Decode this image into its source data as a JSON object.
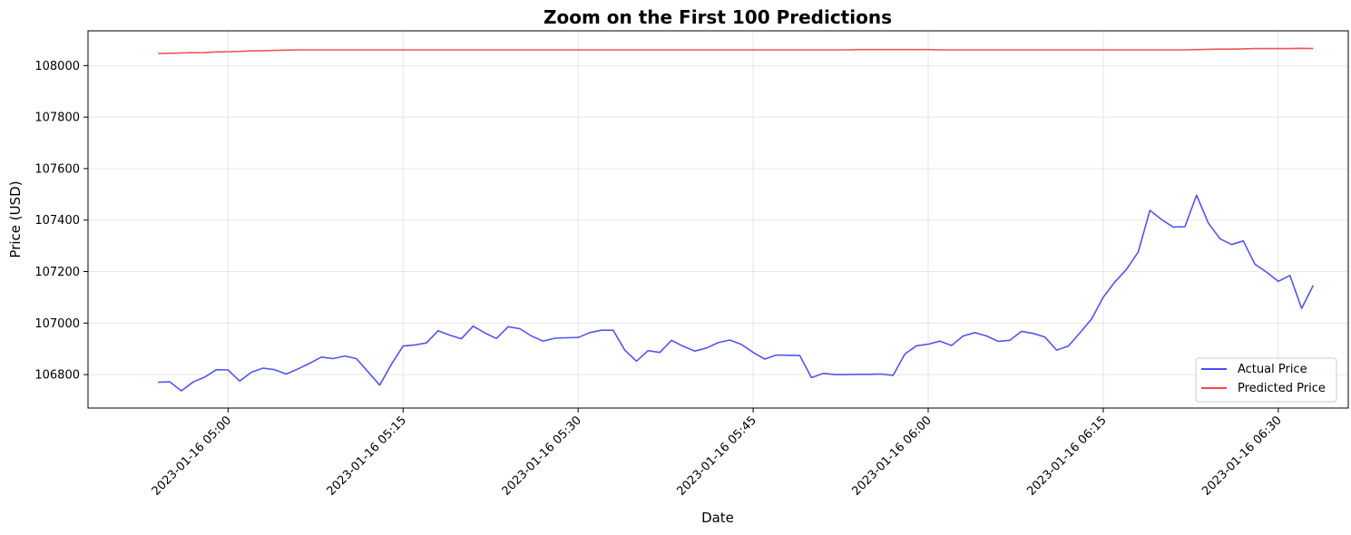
{
  "chart_data": {
    "type": "line",
    "title": "Zoom on the First 100 Predictions",
    "xlabel": "Date",
    "ylabel": "Price (USD)",
    "x_start": "2023-01-16 04:54",
    "x_step_minutes": 1,
    "xlim": [
      "2023-01-16 04:48",
      "2023-01-16 06:36"
    ],
    "ylim": [
      106670,
      108135
    ],
    "x_ticks": [
      "2023-01-16 05:00",
      "2023-01-16 05:15",
      "2023-01-16 05:30",
      "2023-01-16 05:45",
      "2023-01-16 06:00",
      "2023-01-16 06:15",
      "2023-01-16 06:30"
    ],
    "y_ticks": [
      106800,
      107000,
      107200,
      107400,
      107600,
      107800,
      108000
    ],
    "grid": true,
    "legend_position": "lower-right",
    "series": [
      {
        "name": "Actual Price",
        "color": "#4b4bf0",
        "values": [
          106770,
          106772,
          106737,
          106771,
          106790,
          106819,
          106818,
          106775,
          106809,
          106825,
          106819,
          106802,
          106822,
          106844,
          106868,
          106862,
          106872,
          106862,
          106810,
          106759,
          106840,
          106911,
          106915,
          106923,
          106970,
          106953,
          106939,
          106988,
          106962,
          106940,
          106986,
          106978,
          106950,
          106930,
          106941,
          106943,
          106944,
          106963,
          106972,
          106972,
          106895,
          106852,
          106893,
          106886,
          106933,
          106910,
          106891,
          106903,
          106924,
          106934,
          106917,
          106886,
          106860,
          106876,
          106875,
          106874,
          106788,
          106805,
          106800,
          106800,
          106801,
          106801,
          106802,
          106797,
          106880,
          106912,
          106918,
          106930,
          106913,
          106950,
          106963,
          106950,
          106929,
          106933,
          106968,
          106960,
          106946,
          106895,
          106910,
          106962,
          107016,
          107100,
          107160,
          107209,
          107276,
          107438,
          107402,
          107373,
          107374,
          107497,
          107389,
          107328,
          107305,
          107319,
          107229,
          107198,
          107162,
          107185,
          107057,
          107147
        ]
      },
      {
        "name": "Predicted Price",
        "color": "#f04b4b",
        "values": [
          108047,
          108048,
          108049,
          108050,
          108051,
          108053,
          108054,
          108055,
          108057,
          108058,
          108059,
          108060,
          108061,
          108061,
          108061,
          108061,
          108061,
          108061,
          108061,
          108061,
          108061,
          108061,
          108061,
          108061,
          108061,
          108061,
          108061,
          108061,
          108061,
          108061,
          108061,
          108061,
          108061,
          108061,
          108061,
          108061,
          108061,
          108061,
          108061,
          108061,
          108061,
          108061,
          108061,
          108061,
          108061,
          108061,
          108061,
          108061,
          108061,
          108061,
          108061,
          108061,
          108061,
          108061,
          108061,
          108061,
          108061,
          108061,
          108061,
          108061,
          108062,
          108062,
          108062,
          108062,
          108062,
          108062,
          108062,
          108061,
          108061,
          108061,
          108061,
          108061,
          108061,
          108061,
          108061,
          108061,
          108061,
          108061,
          108061,
          108061,
          108061,
          108061,
          108061,
          108061,
          108061,
          108061,
          108061,
          108061,
          108061,
          108062,
          108063,
          108064,
          108064,
          108065,
          108066,
          108066,
          108066,
          108066,
          108067,
          108066
        ]
      }
    ]
  }
}
